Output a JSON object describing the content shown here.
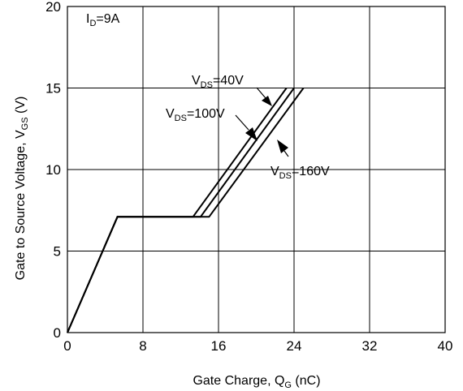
{
  "chart_data": {
    "type": "line",
    "xlabel": "Gate Charge, Q",
    "xlabel_sub": "G",
    "xlabel_suffix": " (nC)",
    "ylabel": "Gate to Source Voltage, V",
    "ylabel_sub": "GS",
    "ylabel_suffix": " (V)",
    "xlim": [
      0,
      40
    ],
    "ylim": [
      0,
      20
    ],
    "xticks": [
      "0",
      "8",
      "16",
      "24",
      "32",
      "40"
    ],
    "yticks": [
      "0",
      "5",
      "10",
      "15",
      "20"
    ],
    "grid": true,
    "condition": {
      "main": "I",
      "sub": "D",
      "rest": "=9A"
    },
    "series": [
      {
        "name": "V_DS=40V",
        "label_main": "V",
        "label_sub": "DS",
        "label_rest": "=40V",
        "points": [
          [
            0,
            0
          ],
          [
            5.3,
            7.1
          ],
          [
            13.3,
            7.1
          ],
          [
            23.2,
            15
          ]
        ]
      },
      {
        "name": "V_DS=100V",
        "label_main": "V",
        "label_sub": "DS",
        "label_rest": "=100V",
        "points": [
          [
            0,
            0
          ],
          [
            5.3,
            7.1
          ],
          [
            14.1,
            7.1
          ],
          [
            24.0,
            15
          ]
        ]
      },
      {
        "name": "V_DS=160V",
        "label_main": "V",
        "label_sub": "DS",
        "label_rest": "=160V",
        "points": [
          [
            0,
            0
          ],
          [
            5.3,
            7.1
          ],
          [
            15.0,
            7.1
          ],
          [
            25.0,
            15
          ]
        ]
      }
    ],
    "colors": {
      "line": "#000000",
      "grid": "#000000",
      "background": "#ffffff"
    }
  }
}
